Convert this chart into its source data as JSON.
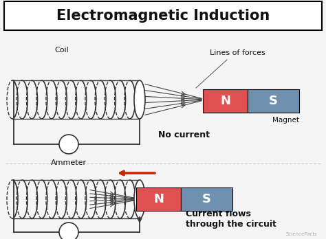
{
  "title": "Electromagnetic Induction",
  "bg_color": "#f5f5f5",
  "magnet_N_color": "#e05050",
  "magnet_S_color": "#7090b0",
  "coil_color": "#333333",
  "arrow_color": "#cc2200",
  "text_color": "#111111",
  "label_coil_top": "Coil",
  "label_lines": "Lines of forces",
  "label_magnet": "Magnet",
  "label_no_current": "No current",
  "label_ammeter": "Ammeter",
  "label_current": "Current flows\nthrough the circuit",
  "watermark": "ScienceFacts"
}
